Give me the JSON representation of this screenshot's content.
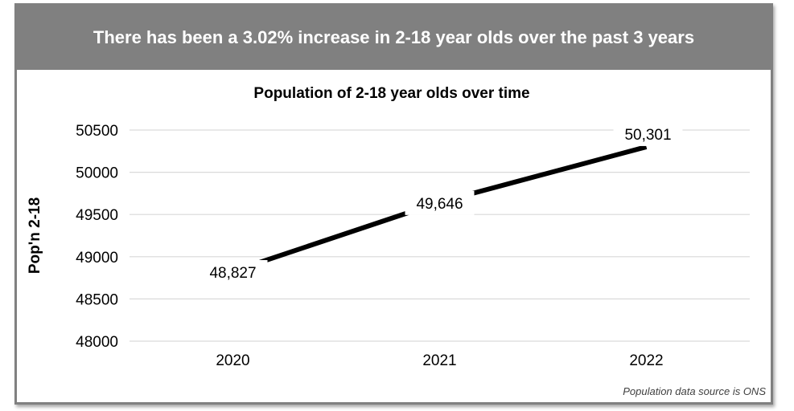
{
  "banner": {
    "text": "There has been a 3.02% increase in 2-18 year olds over the past 3 years"
  },
  "footnote": "Population data source is ONS",
  "chart_data": {
    "type": "line",
    "title": "Population of 2-18 year olds over time",
    "xlabel": "",
    "ylabel": "Pop'n 2-18",
    "categories": [
      "2020",
      "2021",
      "2022"
    ],
    "series": [
      {
        "values": [
          48827,
          49646,
          50301
        ],
        "labels": [
          "48,827",
          "49,646",
          "50,301"
        ],
        "color": "#000000"
      }
    ],
    "ylim": [
      48000,
      50500
    ],
    "yticks": [
      48000,
      48500,
      49000,
      49500,
      50000,
      50500
    ],
    "ytick_labels": [
      "48000",
      "48500",
      "49000",
      "49500",
      "50000",
      "50500"
    ],
    "grid": true,
    "legend": false
  }
}
